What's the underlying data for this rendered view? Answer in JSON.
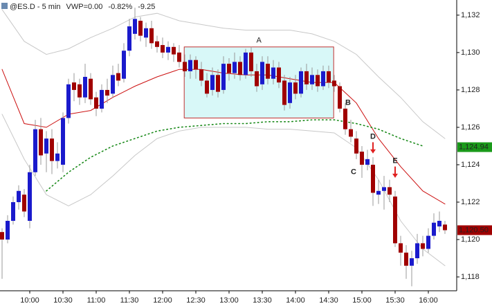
{
  "chart_data": {
    "type": "candlestick",
    "title": "@ES.D - 5 min",
    "stats": [
      "VWP=0.00",
      "-0.82%",
      "-9.25"
    ],
    "stat_colors": [
      "#000000",
      "#c0602a",
      "#c0602a"
    ],
    "up_color": "#1a1acc",
    "down_color": "#a00000",
    "open": [
      1120.4,
      1120.0,
      1121.0,
      1122.0,
      1122.4,
      1121.0,
      1123.6,
      1125.9,
      1124.6,
      1125.4,
      1124.2,
      1124.0,
      1126.5,
      1128.4,
      1128.3,
      1127.6,
      1128.6,
      1127.6,
      1127.0,
      1128.0,
      1127.8,
      1128.9,
      1128.6,
      1130.1,
      1131.0,
      1131.7,
      1130.8,
      1131.3,
      1130.6,
      1130.4,
      1130.0,
      1130.3,
      1130.0,
      1129.5,
      1129.0,
      1129.6,
      1129.1,
      1128.5,
      1128.0,
      1128.8,
      1128.0,
      1129.4,
      1128.9,
      1129.5,
      1128.8,
      1130.0,
      1129.0,
      1128.3,
      1129.4,
      1128.6,
      1129.2,
      1128.5,
      1127.3,
      1128.4,
      1127.8,
      1129.0,
      1128.3,
      1128.8,
      1128.2,
      1129.0,
      1128.5,
      1128.2,
      1127.0,
      1125.9,
      1125.4,
      1124.7,
      1124.0,
      1124.0,
      1122.4,
      1122.6,
      1122.8,
      1122.3,
      1119.8,
      1119.3,
      1118.6,
      1119.0,
      1119.8,
      1119.5,
      1120.2,
      1120.7,
      1120.8
    ],
    "high": [
      1120.6,
      1121.3,
      1122.3,
      1122.9,
      1122.7,
      1124.0,
      1126.4,
      1126.5,
      1125.8,
      1125.9,
      1125.2,
      1126.8,
      1128.6,
      1128.9,
      1128.6,
      1129.4,
      1128.9,
      1127.9,
      1128.3,
      1128.6,
      1129.3,
      1129.4,
      1130.5,
      1131.8,
      1132.4,
      1131.9,
      1131.6,
      1131.7,
      1130.9,
      1130.8,
      1130.6,
      1130.5,
      1130.4,
      1129.9,
      1129.9,
      1129.8,
      1129.5,
      1128.9,
      1129.2,
      1129.1,
      1129.8,
      1129.7,
      1130.0,
      1129.8,
      1130.2,
      1130.3,
      1129.4,
      1129.8,
      1129.8,
      1129.6,
      1129.5,
      1128.8,
      1128.7,
      1128.8,
      1129.2,
      1129.4,
      1129.2,
      1129.1,
      1129.3,
      1129.3,
      1128.8,
      1128.4,
      1127.3,
      1126.4,
      1125.8,
      1125.0,
      1124.8,
      1124.4,
      1123.2,
      1123.4,
      1123.2,
      1122.6,
      1120.2,
      1119.7,
      1119.4,
      1120.3,
      1120.2,
      1120.6,
      1121.4,
      1121.5,
      1121.0
    ],
    "low": [
      1117.9,
      1119.8,
      1120.8,
      1121.6,
      1121.2,
      1120.6,
      1123.4,
      1124.0,
      1123.6,
      1123.5,
      1123.8,
      1123.6,
      1126.2,
      1127.4,
      1127.2,
      1127.3,
      1127.2,
      1126.6,
      1126.8,
      1127.3,
      1127.6,
      1128.2,
      1128.4,
      1129.8,
      1130.7,
      1130.6,
      1130.3,
      1130.2,
      1130.0,
      1129.7,
      1129.6,
      1129.5,
      1129.2,
      1128.7,
      1128.6,
      1128.6,
      1128.2,
      1127.6,
      1127.7,
      1127.6,
      1127.8,
      1128.5,
      1128.6,
      1128.5,
      1128.6,
      1128.7,
      1127.9,
      1128.0,
      1128.3,
      1128.3,
      1128.1,
      1126.9,
      1127.0,
      1127.5,
      1127.6,
      1128.0,
      1128.0,
      1127.9,
      1128.0,
      1128.1,
      1127.9,
      1126.8,
      1125.6,
      1125.2,
      1124.3,
      1123.3,
      1123.7,
      1121.8,
      1121.9,
      1121.6,
      1122.0,
      1119.6,
      1118.6,
      1117.9,
      1117.5,
      1118.7,
      1119.1,
      1119.3,
      1120.0,
      1120.4,
      1120.3
    ],
    "close": [
      1120.0,
      1121.0,
      1122.0,
      1122.6,
      1121.5,
      1123.6,
      1125.9,
      1124.5,
      1125.4,
      1124.2,
      1124.6,
      1126.5,
      1128.3,
      1128.0,
      1127.6,
      1128.7,
      1127.5,
      1127.0,
      1128.0,
      1127.7,
      1128.8,
      1128.5,
      1130.1,
      1131.4,
      1131.8,
      1130.9,
      1131.3,
      1130.5,
      1130.3,
      1130.0,
      1130.3,
      1129.9,
      1129.5,
      1129.0,
      1129.6,
      1129.1,
      1128.5,
      1127.8,
      1128.8,
      1127.9,
      1129.4,
      1128.9,
      1129.5,
      1128.8,
      1130.0,
      1129.0,
      1128.2,
      1129.5,
      1128.6,
      1129.2,
      1128.4,
      1127.2,
      1128.4,
      1127.8,
      1129.0,
      1128.3,
      1128.8,
      1128.2,
      1129.0,
      1128.4,
      1128.2,
      1127.0,
      1125.9,
      1125.5,
      1124.6,
      1124.0,
      1124.3,
      1122.5,
      1122.6,
      1122.8,
      1122.4,
      1119.8,
      1119.3,
      1118.6,
      1119.0,
      1119.8,
      1119.5,
      1120.2,
      1120.9,
      1121.0,
      1120.5
    ],
    "line_x": [
      0,
      4,
      8,
      12,
      16,
      20,
      24,
      28,
      32,
      36,
      40,
      44,
      48,
      52,
      56,
      60,
      64,
      68,
      72,
      76,
      80
    ],
    "lines": [
      {
        "color": "#c8c8c8",
        "dash": "none",
        "values": [
          1132.3,
          1130.6,
          1129.9,
          1130.2,
          1130.8,
          1131.3,
          1131.9,
          1132.1,
          1131.7,
          1131.5,
          1131.3,
          1131.2,
          1131.2,
          1131.2,
          1131.0,
          1130.6,
          1129.9,
          1128.7,
          1127.6,
          1126.3,
          1125.4
        ]
      },
      {
        "color": "#c8c8c8",
        "dash": "none",
        "values": [
          1126.7,
          1124.3,
          1122.4,
          1121.8,
          1122.4,
          1123.4,
          1124.5,
          1125.4,
          1125.8,
          1126.0,
          1126.0,
          1126.0,
          1125.9,
          1125.9,
          1125.8,
          1125.7,
          1124.9,
          1123.2,
          1121.0,
          1119.5,
          1118.6
        ]
      },
      {
        "color": "#cc1010",
        "dash": "none",
        "values": [
          1129.1,
          1126.2,
          1126.0,
          1126.7,
          1126.9,
          1127.6,
          1128.2,
          1128.7,
          1129.1,
          1129.1,
          1128.9,
          1128.8,
          1128.8,
          1128.6,
          1128.4,
          1128.4,
          1127.3,
          1125.4,
          1123.9,
          1122.6,
          1121.9
        ]
      },
      {
        "color": "#1a8a1a",
        "dash": "1.5 4",
        "values": [
          null,
          null,
          1122.6,
          1123.6,
          1124.4,
          1125.0,
          1125.4,
          1125.8,
          1126.0,
          1126.1,
          1126.2,
          1126.2,
          1126.3,
          1126.3,
          1126.4,
          1126.4,
          1126.2,
          1125.9,
          1125.4,
          1125.0,
          null
        ]
      }
    ],
    "box": {
      "label": "A",
      "x": [
        32.9,
        59.9
      ],
      "y": [
        1126.5,
        1130.3
      ],
      "fill": "#d8f8f8",
      "stroke": "#c03030"
    },
    "annotations": [
      {
        "text": "B",
        "x": 62.5,
        "y": 1127.3
      },
      {
        "text": "C",
        "x": 63.5,
        "y": 1123.6
      },
      {
        "text": "D",
        "x": 67,
        "y": 1125.5,
        "arrow": 1124.6
      },
      {
        "text": "E",
        "x": 71,
        "y": 1124.2,
        "arrow": 1123.3
      }
    ],
    "price_tags": [
      {
        "value": 1124.94,
        "label": "1,124.94",
        "color": "#1a9a1a"
      },
      {
        "value": 1120.5,
        "label": "1,120.50",
        "color": "#a00000"
      }
    ],
    "xlim": [
      -0.375,
      82.125
    ],
    "ylim": [
      1117.26,
      1132.81
    ],
    "yticks": [
      {
        "value": 1118,
        "label": "1,118"
      },
      {
        "value": 1120,
        "label": "1,120"
      },
      {
        "value": 1122,
        "label": "1,122"
      },
      {
        "value": 1124,
        "label": "1,124"
      },
      {
        "value": 1126,
        "label": "1,126"
      },
      {
        "value": 1128,
        "label": "1,128"
      },
      {
        "value": 1130,
        "label": "1,130"
      },
      {
        "value": 1132,
        "label": "1,132"
      }
    ],
    "xticks": [
      {
        "value": 5,
        "label": "10:00"
      },
      {
        "value": 11,
        "label": "10:30"
      },
      {
        "value": 17,
        "label": "11:00"
      },
      {
        "value": 23,
        "label": "11:30"
      },
      {
        "value": 29,
        "label": "12:00"
      },
      {
        "value": 35,
        "label": "12:30"
      },
      {
        "value": 41,
        "label": "13:00"
      },
      {
        "value": 47,
        "label": "13:30"
      },
      {
        "value": 53,
        "label": "14:00"
      },
      {
        "value": 59,
        "label": "14:30"
      },
      {
        "value": 65,
        "label": "15:00"
      },
      {
        "value": 71,
        "label": "15:30"
      },
      {
        "value": 77,
        "label": "16:00"
      }
    ]
  }
}
